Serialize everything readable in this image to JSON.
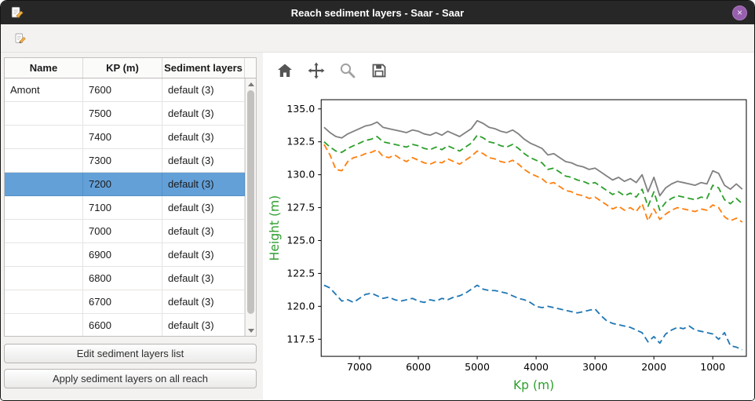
{
  "window": {
    "title": "Reach sediment layers - Saar - Saar",
    "close_glyph": "×"
  },
  "icons": {
    "main_toolbar": [
      "edit-reach-icon"
    ],
    "plot_toolbar": [
      "home-icon",
      "pan-icon",
      "zoom-icon",
      "save-icon"
    ]
  },
  "colors": {
    "titlebar_bg": "#272727",
    "close_button": "#985fae",
    "selection_bg": "#64a0d8",
    "axis_label": "#2e9e2e"
  },
  "table": {
    "columns": [
      "Name",
      "KP (m)",
      "Sediment layers"
    ],
    "selected_row": 4,
    "rows": [
      [
        "Amont",
        "7600",
        "default (3)"
      ],
      [
        "",
        "7500",
        "default (3)"
      ],
      [
        "",
        "7400",
        "default (3)"
      ],
      [
        "",
        "7300",
        "default (3)"
      ],
      [
        "",
        "7200",
        "default (3)"
      ],
      [
        "",
        "7100",
        "default (3)"
      ],
      [
        "",
        "7000",
        "default (3)"
      ],
      [
        "",
        "6900",
        "default (3)"
      ],
      [
        "",
        "6800",
        "default (3)"
      ],
      [
        "",
        "6700",
        "default (3)"
      ],
      [
        "",
        "6600",
        "default (3)"
      ]
    ]
  },
  "buttons": {
    "edit": "Edit sediment layers list",
    "apply": "Apply sediment layers on all reach"
  },
  "chart_data": {
    "type": "line",
    "title": "",
    "xlabel": "Kp (m)",
    "ylabel": "Height (m)",
    "x_inverted": true,
    "xlim": [
      7650,
      430
    ],
    "ylim": [
      116.2,
      135.7
    ],
    "xticks": [
      7000,
      6000,
      5000,
      4000,
      3000,
      2000,
      1000
    ],
    "yticks": [
      117.5,
      120.0,
      122.5,
      125.0,
      127.5,
      130.0,
      132.5,
      135.0
    ],
    "grid": false,
    "legend": "none",
    "axis_label_color": "#2e9e2e",
    "x": [
      7600,
      7500,
      7400,
      7300,
      7200,
      7100,
      7000,
      6900,
      6800,
      6700,
      6600,
      6500,
      6400,
      6300,
      6200,
      6100,
      6000,
      5900,
      5800,
      5700,
      5600,
      5500,
      5400,
      5300,
      5200,
      5100,
      5000,
      4900,
      4800,
      4700,
      4600,
      4500,
      4400,
      4300,
      4200,
      4100,
      4000,
      3900,
      3800,
      3700,
      3600,
      3500,
      3400,
      3300,
      3200,
      3100,
      3000,
      2900,
      2800,
      2700,
      2600,
      2500,
      2400,
      2300,
      2200,
      2100,
      2000,
      1900,
      1800,
      1700,
      1600,
      1500,
      1400,
      1300,
      1200,
      1100,
      1000,
      900,
      800,
      700,
      600,
      500
    ],
    "series": [
      {
        "name": "gray-solid",
        "color": "#808080",
        "style": "solid",
        "values": [
          133.6,
          133.2,
          132.9,
          132.8,
          133.1,
          133.3,
          133.5,
          133.7,
          133.8,
          134.0,
          133.6,
          133.5,
          133.4,
          133.3,
          133.2,
          133.4,
          133.3,
          133.1,
          133.0,
          133.2,
          133.0,
          133.3,
          133.1,
          132.9,
          133.2,
          133.5,
          134.1,
          133.9,
          133.6,
          133.5,
          133.3,
          133.2,
          133.4,
          133.1,
          132.7,
          132.4,
          132.2,
          132.0,
          131.5,
          131.6,
          131.3,
          131.0,
          130.9,
          130.7,
          130.6,
          130.4,
          130.5,
          130.2,
          129.9,
          129.6,
          129.8,
          129.5,
          129.7,
          129.4,
          130.0,
          128.7,
          129.8,
          128.4,
          129.0,
          129.3,
          129.5,
          129.4,
          129.3,
          129.2,
          129.4,
          129.3,
          130.3,
          130.1,
          129.2,
          128.9,
          129.3,
          128.9
        ]
      },
      {
        "name": "green-dashed",
        "color": "#2ca02c",
        "style": "dashed",
        "values": [
          132.5,
          132.1,
          131.8,
          131.7,
          132.0,
          132.2,
          132.4,
          132.6,
          132.7,
          132.9,
          132.5,
          132.4,
          132.3,
          132.2,
          132.1,
          132.3,
          132.2,
          132.0,
          131.9,
          132.1,
          131.9,
          132.2,
          132.0,
          131.8,
          132.1,
          132.4,
          133.0,
          132.8,
          132.5,
          132.4,
          132.2,
          132.1,
          132.3,
          132.0,
          131.6,
          131.3,
          131.1,
          130.9,
          130.4,
          130.5,
          130.2,
          129.9,
          129.8,
          129.6,
          129.5,
          129.3,
          129.4,
          129.1,
          128.8,
          128.5,
          128.7,
          128.4,
          128.6,
          128.3,
          128.9,
          127.6,
          128.7,
          127.3,
          127.9,
          128.2,
          128.4,
          128.3,
          128.2,
          128.1,
          128.3,
          128.2,
          129.2,
          129.0,
          128.1,
          127.8,
          128.2,
          127.8
        ]
      },
      {
        "name": "orange-dashed",
        "color": "#ff7f0e",
        "style": "dashed",
        "values": [
          132.3,
          131.5,
          130.4,
          130.3,
          131.0,
          131.3,
          131.4,
          131.6,
          131.7,
          131.9,
          131.4,
          131.3,
          131.5,
          131.2,
          131.0,
          131.3,
          131.1,
          130.9,
          130.8,
          131.0,
          130.9,
          131.2,
          131.0,
          130.8,
          131.1,
          131.4,
          131.8,
          131.6,
          131.3,
          131.2,
          131.0,
          130.9,
          131.1,
          130.8,
          130.4,
          130.1,
          129.9,
          129.7,
          129.3,
          129.4,
          129.1,
          128.8,
          128.7,
          128.5,
          128.4,
          128.2,
          128.3,
          128.0,
          127.7,
          127.4,
          127.6,
          127.3,
          127.5,
          127.2,
          127.8,
          126.5,
          127.4,
          126.6,
          127.0,
          127.3,
          127.5,
          127.4,
          127.3,
          127.2,
          127.4,
          127.3,
          127.7,
          127.5,
          126.8,
          126.5,
          126.7,
          126.4
        ]
      },
      {
        "name": "blue-dashed",
        "color": "#1f77b4",
        "style": "dashed",
        "values": [
          121.6,
          121.4,
          120.9,
          120.4,
          120.5,
          120.3,
          120.6,
          120.9,
          121.0,
          120.8,
          120.6,
          120.7,
          120.5,
          120.4,
          120.5,
          120.6,
          120.4,
          120.3,
          120.5,
          120.4,
          120.6,
          120.5,
          120.7,
          120.8,
          121.0,
          121.3,
          121.6,
          121.3,
          121.2,
          121.2,
          121.1,
          121.0,
          120.8,
          120.6,
          120.5,
          120.3,
          120.0,
          119.9,
          120.0,
          119.9,
          119.8,
          119.7,
          119.6,
          119.5,
          119.6,
          119.7,
          119.8,
          119.3,
          118.9,
          118.7,
          118.6,
          118.5,
          118.4,
          118.2,
          118.0,
          117.3,
          117.7,
          117.2,
          117.9,
          118.2,
          118.4,
          118.3,
          118.5,
          118.2,
          118.1,
          118.0,
          117.9,
          117.5,
          118.0,
          117.0,
          116.9,
          116.7
        ]
      }
    ]
  }
}
